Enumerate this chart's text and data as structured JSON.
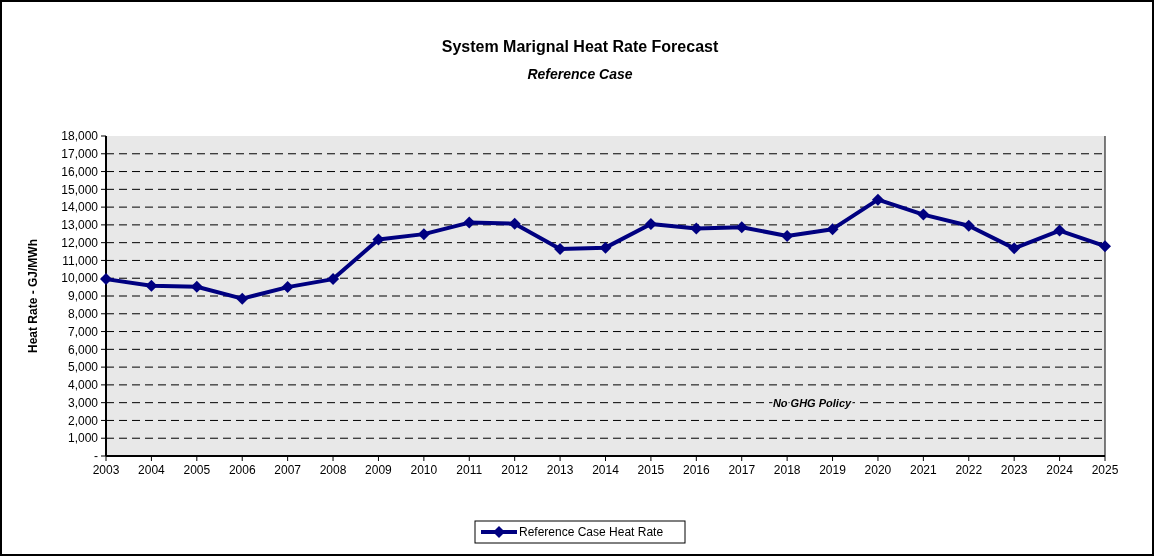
{
  "chart_data": {
    "type": "line",
    "title": "System Marignal Heat Rate Forecast",
    "subtitle": "Reference Case",
    "ylabel": "Heat Rate - GJ/MWh",
    "x": [
      2003,
      2004,
      2005,
      2006,
      2007,
      2008,
      2009,
      2010,
      2011,
      2012,
      2013,
      2014,
      2015,
      2016,
      2017,
      2018,
      2019,
      2020,
      2021,
      2022,
      2023,
      2024,
      2025
    ],
    "series": [
      {
        "name": "Reference Case Heat Rate",
        "color": "#000080",
        "values": [
          9950,
          9580,
          9520,
          8850,
          9500,
          9950,
          12180,
          12480,
          13130,
          13070,
          11650,
          11720,
          13050,
          12800,
          12870,
          12380,
          12760,
          14420,
          13580,
          12950,
          11680,
          12680,
          11800
        ]
      }
    ],
    "xlim": [
      2003,
      2025
    ],
    "xticks": [
      2003,
      2004,
      2005,
      2006,
      2007,
      2008,
      2009,
      2010,
      2011,
      2012,
      2013,
      2014,
      2015,
      2016,
      2017,
      2018,
      2019,
      2020,
      2021,
      2022,
      2023,
      2024,
      2025
    ],
    "ylim": [
      0,
      18000
    ],
    "yticks": [
      {
        "value": 0,
        "label": "-"
      },
      {
        "value": 1000,
        "label": "1,000"
      },
      {
        "value": 2000,
        "label": "2,000"
      },
      {
        "value": 3000,
        "label": "3,000"
      },
      {
        "value": 4000,
        "label": "4,000"
      },
      {
        "value": 5000,
        "label": "5,000"
      },
      {
        "value": 6000,
        "label": "6,000"
      },
      {
        "value": 7000,
        "label": "7,000"
      },
      {
        "value": 8000,
        "label": "8,000"
      },
      {
        "value": 9000,
        "label": "9,000"
      },
      {
        "value": 10000,
        "label": "10,000"
      },
      {
        "value": 11000,
        "label": "11,000"
      },
      {
        "value": 12000,
        "label": "12,000"
      },
      {
        "value": 13000,
        "label": "13,000"
      },
      {
        "value": 14000,
        "label": "14,000"
      },
      {
        "value": 15000,
        "label": "15,000"
      },
      {
        "value": 16000,
        "label": "16,000"
      },
      {
        "value": 17000,
        "label": "17,000"
      },
      {
        "value": 18000,
        "label": "18,000"
      }
    ],
    "grid": "y",
    "legend": "bottom",
    "marker": "diamond",
    "line_style": "solid",
    "annotations": [
      "No GHG Policy"
    ]
  }
}
